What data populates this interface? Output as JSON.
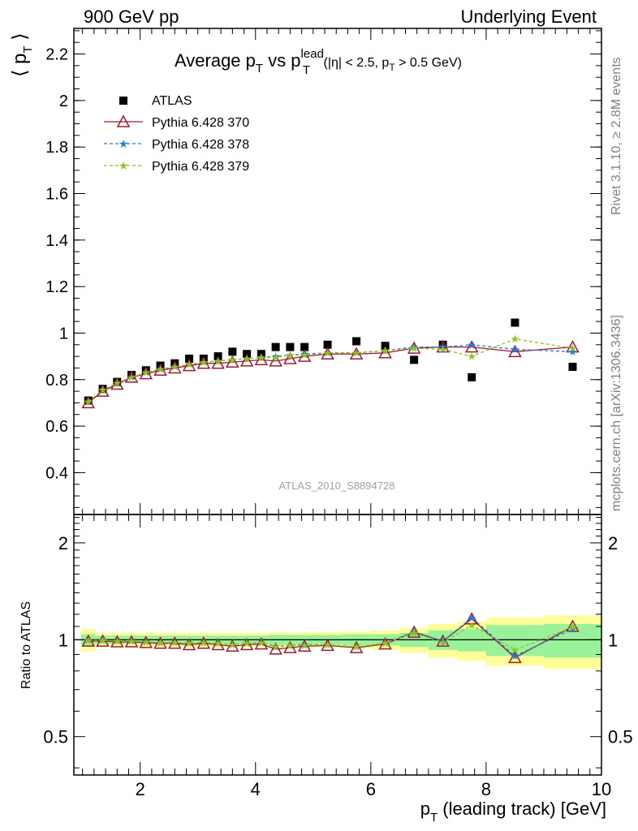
{
  "header": {
    "left": "900 GeV pp",
    "right": "Underlying Event"
  },
  "side_labels": {
    "rivet": "Rivet 3.1.10, ≥ 2.8M events",
    "mcplots": "mcplots.cern.ch [arXiv:1306.3436]"
  },
  "chart_data": [
    {
      "type": "scatter",
      "panel": "main",
      "title": "Average p_T vs p_T^lead (|η| < 2.5, p_T > 0.5 GeV)",
      "title_parts": {
        "main": "Average p",
        "sub1": "T",
        "vs": " vs p",
        "sup": "lead",
        "sub2": "T",
        "cond": " (|η| < 2.5, p",
        "sub3": "T",
        "cond2": " > 0.5 GeV)"
      },
      "ylabel": "⟨ p_T ⟩",
      "ylabel_parts": {
        "open": "⟨ p",
        "sub": "T",
        "close": " ⟩"
      },
      "watermark": "ATLAS_2010_S8894728",
      "xlim": [
        0.85,
        10.0
      ],
      "ylim": [
        0.22,
        2.31
      ],
      "yticks": [
        0.4,
        0.6,
        0.8,
        1.0,
        1.2,
        1.4,
        1.6,
        1.8,
        2.0,
        2.2
      ],
      "ytick_labels": [
        "0.4",
        "0.6",
        "0.8",
        "1",
        "1.2",
        "1.4",
        "1.6",
        "1.8",
        "2",
        "2.2"
      ],
      "legend_position": "top-left",
      "x": [
        1.1,
        1.35,
        1.6,
        1.85,
        2.1,
        2.35,
        2.6,
        2.85,
        3.1,
        3.35,
        3.6,
        3.85,
        4.1,
        4.35,
        4.6,
        4.85,
        5.25,
        5.75,
        6.25,
        6.75,
        7.25,
        7.75,
        8.5,
        9.5
      ],
      "series": [
        {
          "name": "ATLAS",
          "color": "#000000",
          "marker": "square",
          "values": [
            0.71,
            0.76,
            0.79,
            0.82,
            0.84,
            0.86,
            0.87,
            0.89,
            0.89,
            0.9,
            0.92,
            0.91,
            0.91,
            0.94,
            0.94,
            0.94,
            0.95,
            0.965,
            0.945,
            0.885,
            0.95,
            0.81,
            1.045,
            0.855
          ]
        },
        {
          "name": "Pythia 6.428 370",
          "color": "#9b1b30",
          "marker": "triangle",
          "line": "solid",
          "values": [
            0.7,
            0.75,
            0.78,
            0.81,
            0.825,
            0.84,
            0.85,
            0.86,
            0.87,
            0.87,
            0.875,
            0.88,
            0.885,
            0.88,
            0.89,
            0.9,
            0.91,
            0.91,
            0.915,
            0.935,
            0.94,
            0.94,
            0.92,
            0.94
          ]
        },
        {
          "name": "Pythia 6.428 378",
          "color": "#1e7fd8",
          "marker": "star",
          "line": "dashed",
          "values": [
            0.705,
            0.755,
            0.785,
            0.81,
            0.83,
            0.845,
            0.855,
            0.865,
            0.875,
            0.88,
            0.885,
            0.89,
            0.895,
            0.9,
            0.905,
            0.91,
            0.915,
            0.915,
            0.925,
            0.94,
            0.94,
            0.95,
            0.93,
            0.92
          ]
        },
        {
          "name": "Pythia 6.428 379",
          "color": "#8fc31f",
          "marker": "star",
          "line": "dashed",
          "values": [
            0.705,
            0.755,
            0.785,
            0.81,
            0.83,
            0.845,
            0.855,
            0.865,
            0.875,
            0.88,
            0.885,
            0.89,
            0.895,
            0.895,
            0.905,
            0.905,
            0.915,
            0.915,
            0.925,
            0.935,
            0.93,
            0.9,
            0.975,
            0.935
          ]
        }
      ]
    },
    {
      "type": "scatter",
      "panel": "ratio",
      "ylabel": "Ratio to ATLAS",
      "xlabel": "p_T (leading track) [GeV]",
      "xlabel_parts": {
        "main": "p",
        "sub": "T",
        "rest": " (leading track) [GeV]"
      },
      "xlim": [
        0.85,
        10.0
      ],
      "xticks": [
        2,
        4,
        6,
        8,
        10
      ],
      "xtick_labels": [
        "2",
        "4",
        "6",
        "8",
        "10"
      ],
      "ylim": [
        0.38,
        2.45
      ],
      "log_y": true,
      "yticks": [
        0.5,
        1,
        2
      ],
      "ytick_labels": [
        "0.5",
        "1",
        "2"
      ],
      "reference_line": 1,
      "band_edges": [
        0.975,
        1.225,
        1.475,
        1.725,
        1.975,
        2.225,
        2.475,
        2.725,
        2.975,
        3.225,
        3.475,
        3.725,
        3.975,
        4.225,
        4.475,
        4.725,
        5.0,
        5.5,
        6.0,
        6.5,
        7.0,
        7.5,
        8.0,
        9.0,
        10.0
      ],
      "band_inner": [
        0.04,
        0.03,
        0.03,
        0.03,
        0.03,
        0.03,
        0.03,
        0.03,
        0.03,
        0.03,
        0.03,
        0.03,
        0.03,
        0.035,
        0.035,
        0.035,
        0.035,
        0.04,
        0.04,
        0.05,
        0.07,
        0.08,
        0.11,
        0.12
      ],
      "band_outer": [
        0.08,
        0.05,
        0.05,
        0.05,
        0.05,
        0.05,
        0.05,
        0.05,
        0.05,
        0.05,
        0.05,
        0.05,
        0.05,
        0.055,
        0.055,
        0.055,
        0.055,
        0.06,
        0.07,
        0.09,
        0.12,
        0.14,
        0.17,
        0.19
      ],
      "colors": {
        "inner": "#99f299",
        "outer": "#ffff99"
      },
      "x": [
        1.1,
        1.35,
        1.6,
        1.85,
        2.1,
        2.35,
        2.6,
        2.85,
        3.1,
        3.35,
        3.6,
        3.85,
        4.1,
        4.35,
        4.6,
        4.85,
        5.25,
        5.75,
        6.25,
        6.75,
        7.25,
        7.75,
        8.5,
        9.5
      ],
      "series": [
        {
          "name": "Pythia 6.428 370",
          "color": "#9b1b30",
          "marker": "triangle",
          "line": "solid",
          "values": [
            0.99,
            0.99,
            0.985,
            0.985,
            0.98,
            0.975,
            0.975,
            0.965,
            0.975,
            0.965,
            0.955,
            0.965,
            0.97,
            0.935,
            0.945,
            0.955,
            0.96,
            0.945,
            0.97,
            1.055,
            0.99,
            1.16,
            0.88,
            1.1
          ]
        },
        {
          "name": "Pythia 6.428 378",
          "color": "#1e7fd8",
          "marker": "star",
          "line": "dashed",
          "values": [
            0.995,
            0.995,
            0.99,
            0.99,
            0.985,
            0.98,
            0.98,
            0.975,
            0.98,
            0.975,
            0.965,
            0.975,
            0.98,
            0.955,
            0.96,
            0.965,
            0.965,
            0.95,
            0.975,
            1.06,
            0.99,
            1.17,
            0.89,
            1.08
          ]
        },
        {
          "name": "Pythia 6.428 379",
          "color": "#8fc31f",
          "marker": "star",
          "line": "dashed",
          "values": [
            0.995,
            0.995,
            0.99,
            0.99,
            0.985,
            0.98,
            0.98,
            0.975,
            0.98,
            0.975,
            0.965,
            0.975,
            0.98,
            0.95,
            0.96,
            0.96,
            0.965,
            0.95,
            0.975,
            1.05,
            0.98,
            1.11,
            0.93,
            1.095
          ]
        }
      ]
    }
  ]
}
